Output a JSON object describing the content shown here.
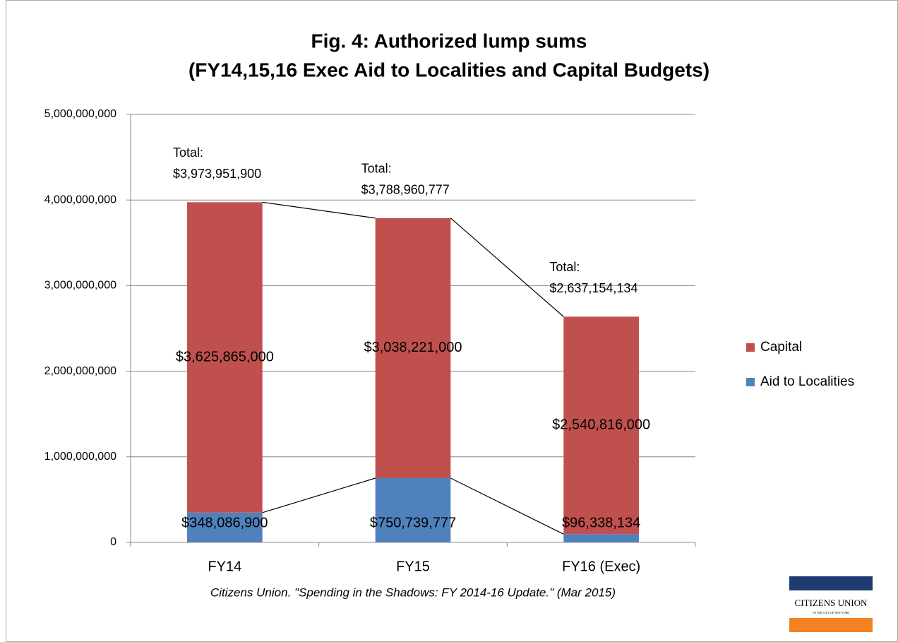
{
  "chart_data": {
    "type": "stacked_bar",
    "title": [
      "Fig. 4: Authorized lump sums",
      "(FY14,15,16 Exec Aid to Localities and Capital Budgets)"
    ],
    "categories": [
      "FY14",
      "FY15",
      "FY16 (Exec)"
    ],
    "series": [
      {
        "name": "Aid to Localities",
        "color": "#4f81bd",
        "values": [
          348086900,
          750739777,
          96338134
        ],
        "value_labels": [
          "$348,086,900",
          "$750,739,777",
          "$96,338,134"
        ]
      },
      {
        "name": "Capital",
        "color": "#c0504d",
        "values": [
          3625865000,
          3038221000,
          2540816000
        ],
        "value_labels": [
          "$3,625,865,000",
          "$3,038,221,000",
          "$2,540,816,000"
        ]
      }
    ],
    "annotations": [
      [
        "Total:",
        "$3,973,951,900"
      ],
      [
        "Total:",
        "$3,788,960,777"
      ],
      [
        "Total:",
        "$2,637,154,134"
      ]
    ],
    "ylim": [
      0,
      5000000000
    ],
    "yticks": [
      0,
      {
        "value": 1000000000,
        "label": "1,000,000,000"
      },
      {
        "value": 2000000000,
        "label": "2,000,000,000"
      },
      {
        "value": 3000000000,
        "label": "3,000,000,000"
      },
      {
        "value": 4000000000,
        "label": "4,000,000,000"
      },
      {
        "value": 5000000000,
        "label": "5,000,000,000"
      }
    ],
    "grid": true,
    "series_lines": true,
    "legend": "right",
    "source": "Citizens Union. \"Spending in the Shadows: FY 2014-16 Update.\" (Mar 2015)",
    "logo": [
      "CITIZENS UNION",
      "OF THE CITY OF NEW YORK"
    ]
  }
}
